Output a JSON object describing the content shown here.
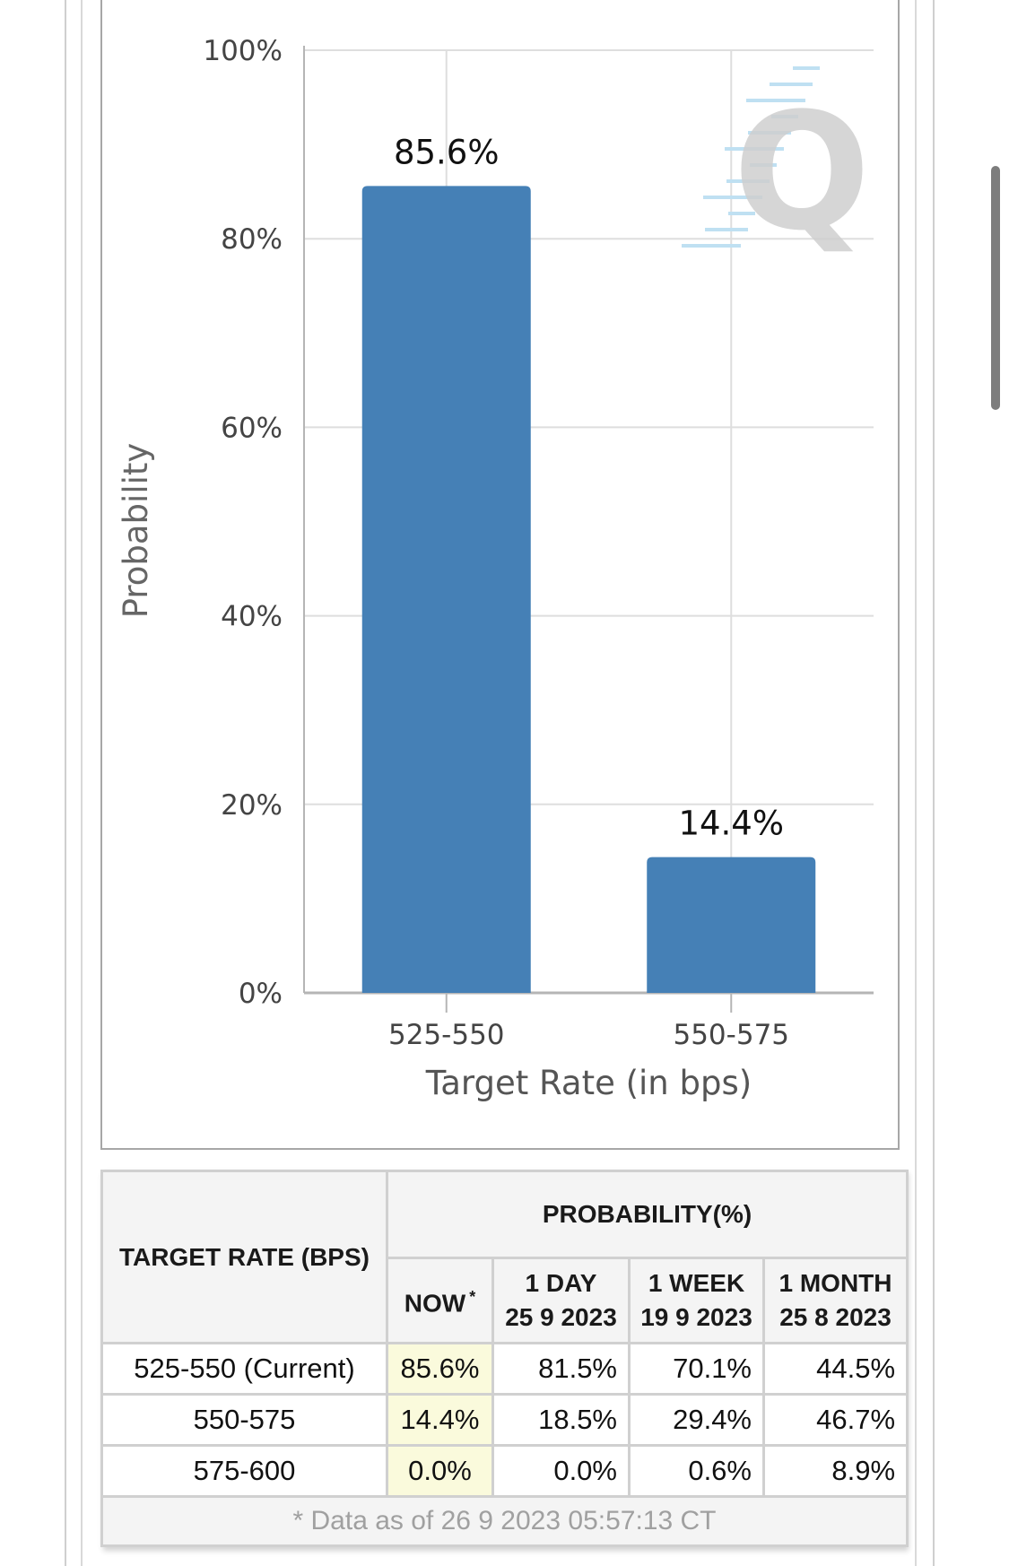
{
  "chart_data": {
    "type": "bar",
    "categories": [
      "525-550",
      "550-575"
    ],
    "values": [
      85.6,
      14.4
    ],
    "data_labels": [
      "85.6%",
      "14.4%"
    ],
    "title": "",
    "xlabel": "Target Rate (in bps)",
    "ylabel": "Probability",
    "ylim": [
      0,
      100
    ],
    "yticks": [
      "0%",
      "20%",
      "40%",
      "60%",
      "80%",
      "100%"
    ],
    "grid": true,
    "bar_color": "#4580b6",
    "watermark": "Q"
  },
  "table": {
    "header_target": "TARGET RATE (BPS)",
    "header_probability": "PROBABILITY(%)",
    "columns": [
      {
        "line1": "NOW",
        "line2": "",
        "footnote": "*"
      },
      {
        "line1": "1 DAY",
        "line2": "25 9 2023"
      },
      {
        "line1": "1 WEEK",
        "line2": "19 9 2023"
      },
      {
        "line1": "1 MONTH",
        "line2": "25 8 2023"
      }
    ],
    "rows": [
      {
        "rate": "525-550 (Current)",
        "now": "85.6%",
        "day": "81.5%",
        "week": "70.1%",
        "month": "44.5%"
      },
      {
        "rate": "550-575",
        "now": "14.4%",
        "day": "18.5%",
        "week": "29.4%",
        "month": "46.7%"
      },
      {
        "rate": "575-600",
        "now": "0.0%",
        "day": "0.0%",
        "week": "0.6%",
        "month": "8.9%"
      }
    ],
    "footnote": "* Data as of 26 9 2023 05:57:13 CT",
    "now_highlight_color": "#fafadc"
  }
}
